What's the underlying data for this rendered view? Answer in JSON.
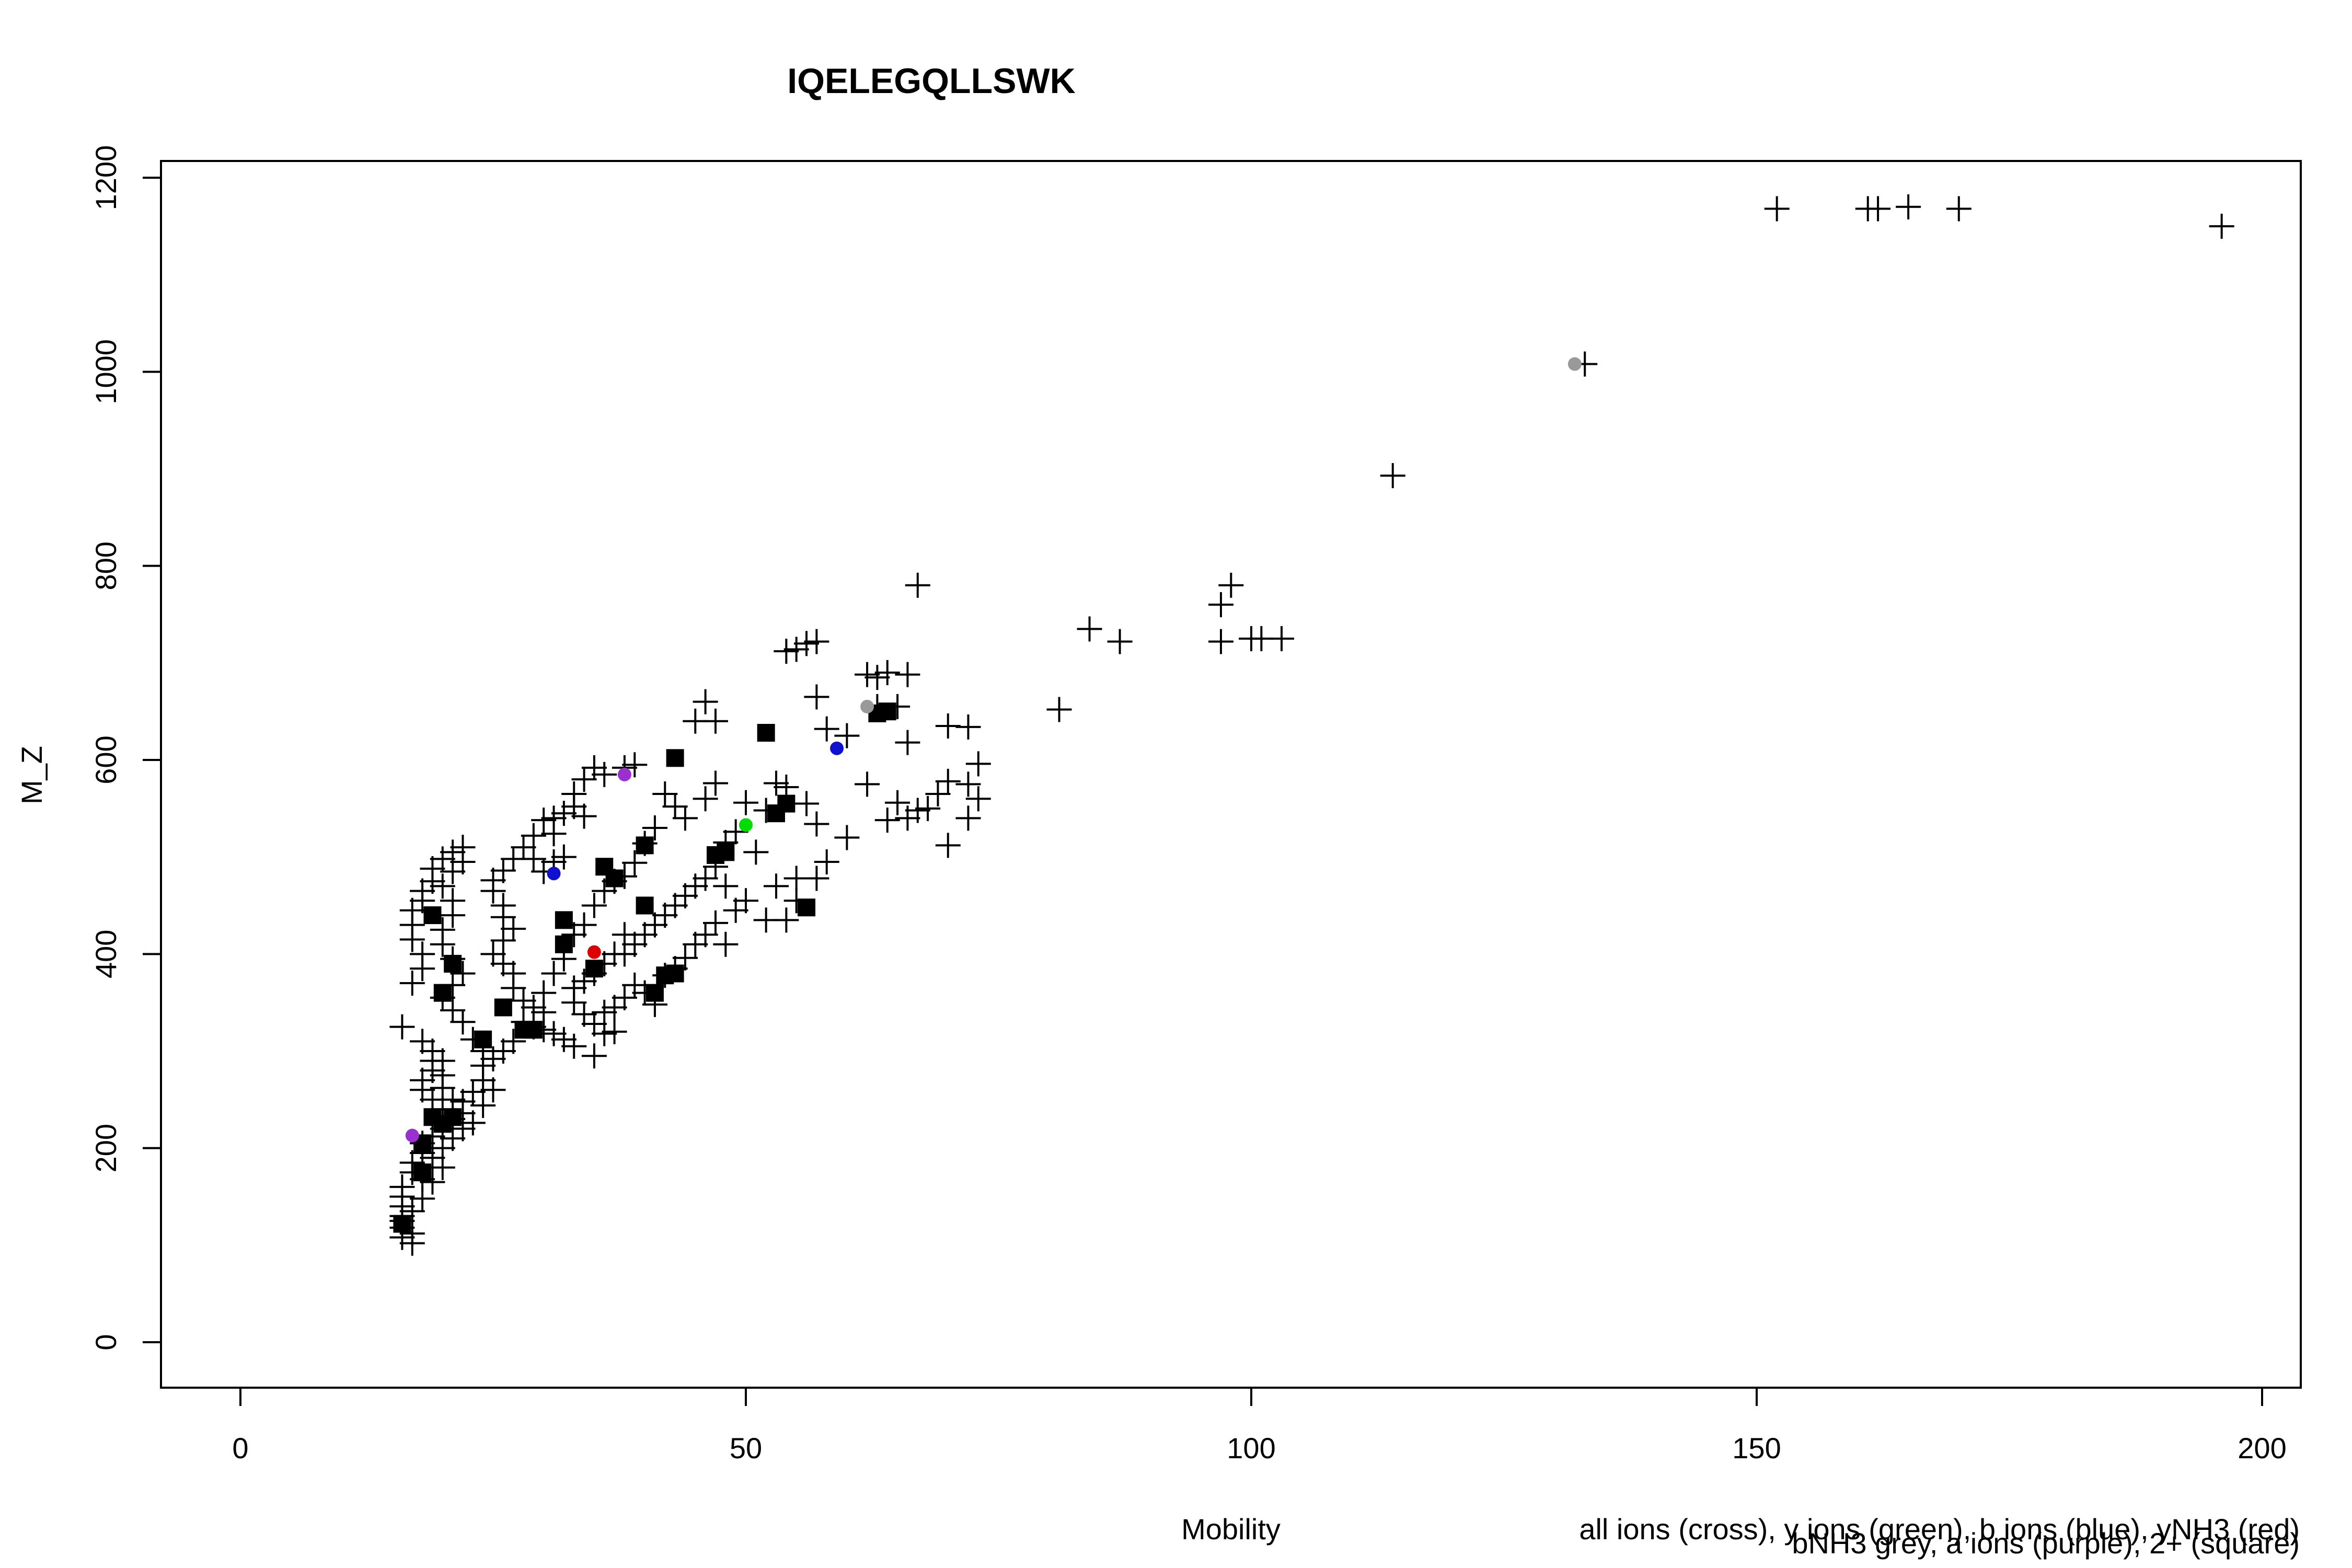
{
  "chart_data": {
    "type": "scatter",
    "title": "IQELEGQLLSWK",
    "xlabel": "Mobility",
    "ylabel": "M_Z",
    "xlim": [
      0,
      200
    ],
    "ylim": [
      0,
      1200
    ],
    "xticks": [
      "0",
      "50",
      "100",
      "150",
      "200"
    ],
    "yticks": [
      "0",
      "200",
      "400",
      "600",
      "800",
      "1000",
      "1200"
    ],
    "legend_notes": [
      "all ions (cross), y ions (green), b ions (blue), yNH3 (red)",
      "bNH3 grey, a ions (purple), 2+ (square)"
    ],
    "grid": false,
    "colors": {
      "cross": "#000000",
      "y_ions": "#00dd00",
      "b_ions": "#1010d0",
      "yNH3": "#dd0000",
      "bNH3": "#999999",
      "a_ions": "#9a30d0",
      "doubly_charged": "#000000"
    },
    "series": [
      {
        "name": "all ions (cross)",
        "marker": "cross",
        "points": [
          [
            152,
            1168
          ],
          [
            161,
            1168
          ],
          [
            162,
            1168
          ],
          [
            165,
            1170
          ],
          [
            170,
            1168
          ],
          [
            196,
            1150
          ],
          [
            133,
            1008
          ],
          [
            114,
            893
          ],
          [
            97,
            760
          ],
          [
            98,
            780
          ],
          [
            97,
            722
          ],
          [
            100,
            725
          ],
          [
            101,
            725
          ],
          [
            103,
            725
          ],
          [
            84,
            735
          ],
          [
            87,
            722
          ],
          [
            67,
            780
          ],
          [
            81,
            652
          ],
          [
            56,
            720
          ],
          [
            57,
            722
          ],
          [
            54,
            712
          ],
          [
            55,
            714
          ],
          [
            62,
            688
          ],
          [
            64,
            690
          ],
          [
            66,
            688
          ],
          [
            63,
            685
          ],
          [
            46,
            660
          ],
          [
            47,
            640
          ],
          [
            45,
            640
          ],
          [
            63,
            655
          ],
          [
            65,
            655
          ],
          [
            66,
            618
          ],
          [
            57,
            665
          ],
          [
            58,
            632
          ],
          [
            60,
            625
          ],
          [
            70,
            635
          ],
          [
            72,
            634
          ],
          [
            73,
            596
          ],
          [
            72,
            575
          ],
          [
            73,
            560
          ],
          [
            72,
            540
          ],
          [
            70,
            578
          ],
          [
            69,
            565
          ],
          [
            68,
            550
          ],
          [
            67,
            548
          ],
          [
            66,
            540
          ],
          [
            65,
            556
          ],
          [
            64,
            538
          ],
          [
            62,
            575
          ],
          [
            70,
            512
          ],
          [
            60,
            520
          ],
          [
            57,
            534
          ],
          [
            57,
            478
          ],
          [
            58,
            495
          ],
          [
            55,
            478
          ],
          [
            52,
            435
          ],
          [
            54,
            435
          ],
          [
            55,
            455
          ],
          [
            53,
            470
          ],
          [
            51,
            505
          ],
          [
            52,
            548
          ],
          [
            54,
            572
          ],
          [
            53,
            576
          ],
          [
            56,
            555
          ],
          [
            50,
            556
          ],
          [
            49,
            526
          ],
          [
            48,
            515
          ],
          [
            47,
            576
          ],
          [
            46,
            560
          ],
          [
            44,
            540
          ],
          [
            43,
            552
          ],
          [
            42,
            565
          ],
          [
            41,
            530
          ],
          [
            40,
            514
          ],
          [
            39,
            494
          ],
          [
            38,
            480
          ],
          [
            36,
            585
          ],
          [
            35,
            592
          ],
          [
            38,
            592
          ],
          [
            39,
            595
          ],
          [
            34,
            580
          ],
          [
            33,
            565
          ],
          [
            33,
            552
          ],
          [
            32,
            545
          ],
          [
            31,
            540
          ],
          [
            30,
            538
          ],
          [
            31,
            524
          ],
          [
            34,
            542
          ],
          [
            32,
            500
          ],
          [
            31,
            495
          ],
          [
            30,
            485
          ],
          [
            29,
            498
          ],
          [
            28,
            510
          ],
          [
            29,
            522
          ],
          [
            27,
            498
          ],
          [
            26,
            486
          ],
          [
            25,
            476
          ],
          [
            25,
            465
          ],
          [
            26,
            450
          ],
          [
            26,
            438
          ],
          [
            27,
            426
          ],
          [
            26,
            414
          ],
          [
            25,
            400
          ],
          [
            26,
            390
          ],
          [
            27,
            380
          ],
          [
            27,
            365
          ],
          [
            28,
            352
          ],
          [
            29,
            345
          ],
          [
            30,
            340
          ],
          [
            30,
            360
          ],
          [
            31,
            380
          ],
          [
            32,
            395
          ],
          [
            33,
            420
          ],
          [
            34,
            430
          ],
          [
            35,
            450
          ],
          [
            36,
            465
          ],
          [
            37,
            475
          ],
          [
            38,
            420
          ],
          [
            37,
            400
          ],
          [
            36,
            390
          ],
          [
            35,
            380
          ],
          [
            34,
            372
          ],
          [
            33,
            365
          ],
          [
            33,
            350
          ],
          [
            34,
            338
          ],
          [
            35,
            328
          ],
          [
            36,
            318
          ],
          [
            37,
            345
          ],
          [
            38,
            355
          ],
          [
            39,
            368
          ],
          [
            40,
            360
          ],
          [
            41,
            348
          ],
          [
            42,
            378
          ],
          [
            43,
            385
          ],
          [
            44,
            396
          ],
          [
            45,
            410
          ],
          [
            46,
            420
          ],
          [
            47,
            432
          ],
          [
            48,
            410
          ],
          [
            49,
            445
          ],
          [
            50,
            455
          ],
          [
            48,
            470
          ],
          [
            47,
            490
          ],
          [
            46,
            478
          ],
          [
            45,
            470
          ],
          [
            44,
            460
          ],
          [
            43,
            450
          ],
          [
            42,
            440
          ],
          [
            41,
            430
          ],
          [
            40,
            420
          ],
          [
            39,
            410
          ],
          [
            38,
            400
          ],
          [
            36,
            340
          ],
          [
            37,
            320
          ],
          [
            35,
            295
          ],
          [
            33,
            305
          ],
          [
            32,
            312
          ],
          [
            31,
            318
          ],
          [
            30,
            322
          ],
          [
            29,
            325
          ],
          [
            28,
            330
          ],
          [
            27,
            310
          ],
          [
            26,
            300
          ],
          [
            25,
            292
          ],
          [
            24,
            285
          ],
          [
            24,
            270
          ],
          [
            23,
            258
          ],
          [
            22,
            248
          ],
          [
            23,
            226
          ],
          [
            24,
            244
          ],
          [
            25,
            260
          ],
          [
            24,
            300
          ],
          [
            23,
            312
          ],
          [
            22,
            330
          ],
          [
            21,
            342
          ],
          [
            20,
            355
          ],
          [
            21,
            368
          ],
          [
            22,
            380
          ],
          [
            21,
            395
          ],
          [
            20,
            410
          ],
          [
            20,
            425
          ],
          [
            21,
            440
          ],
          [
            21,
            455
          ],
          [
            20,
            470
          ],
          [
            21,
            485
          ],
          [
            22,
            495
          ],
          [
            21,
            505
          ],
          [
            22,
            510
          ],
          [
            20,
            498
          ],
          [
            19,
            488
          ],
          [
            19,
            475
          ],
          [
            18,
            465
          ],
          [
            18,
            455
          ],
          [
            17,
            445
          ],
          [
            17,
            430
          ],
          [
            17,
            415
          ],
          [
            18,
            400
          ],
          [
            18,
            385
          ],
          [
            17,
            370
          ],
          [
            16,
            325
          ],
          [
            19,
            300
          ],
          [
            20,
            290
          ],
          [
            19,
            280
          ],
          [
            18,
            270
          ],
          [
            18,
            260
          ],
          [
            19,
            250
          ],
          [
            20,
            240
          ],
          [
            21,
            230
          ],
          [
            20,
            220
          ],
          [
            19,
            212
          ],
          [
            18,
            205
          ],
          [
            18,
            195
          ],
          [
            17,
            185
          ],
          [
            17,
            175
          ],
          [
            18,
            168
          ],
          [
            16,
            160
          ],
          [
            16,
            150
          ],
          [
            16,
            140
          ],
          [
            16,
            130
          ],
          [
            16,
            118
          ],
          [
            16,
            108
          ],
          [
            17,
            102
          ],
          [
            17,
            112
          ],
          [
            16,
            125
          ],
          [
            17,
            135
          ],
          [
            18,
            148
          ],
          [
            19,
            165
          ],
          [
            20,
            180
          ],
          [
            19,
            190
          ],
          [
            20,
            200
          ],
          [
            21,
            210
          ],
          [
            22,
            220
          ],
          [
            22,
            236
          ],
          [
            21,
            250
          ],
          [
            20,
            262
          ],
          [
            20,
            275
          ],
          [
            19,
            290
          ],
          [
            18,
            310
          ]
        ]
      },
      {
        "name": "2+ (square)",
        "marker": "square",
        "points": [
          [
            16,
            122
          ],
          [
            18,
            205
          ],
          [
            19,
            232
          ],
          [
            20,
            225
          ],
          [
            21,
            232
          ],
          [
            18,
            175
          ],
          [
            19,
            440
          ],
          [
            21,
            390
          ],
          [
            20,
            360
          ],
          [
            24,
            312
          ],
          [
            26,
            345
          ],
          [
            28,
            322
          ],
          [
            29,
            322
          ],
          [
            32,
            435
          ],
          [
            32,
            410
          ],
          [
            36,
            490
          ],
          [
            37,
            478
          ],
          [
            35,
            385
          ],
          [
            40,
            512
          ],
          [
            40,
            450
          ],
          [
            41,
            360
          ],
          [
            42,
            378
          ],
          [
            43,
            380
          ],
          [
            43,
            602
          ],
          [
            47,
            502
          ],
          [
            48,
            505
          ],
          [
            52,
            628
          ],
          [
            53,
            545
          ],
          [
            54,
            555
          ],
          [
            56,
            448
          ],
          [
            63,
            648
          ],
          [
            64,
            650
          ]
        ]
      },
      {
        "name": "y ions (green)",
        "marker": "dot",
        "points": [
          [
            50,
            533
          ]
        ]
      },
      {
        "name": "b ions (blue)",
        "marker": "dot",
        "points": [
          [
            31,
            483
          ],
          [
            59,
            612
          ]
        ]
      },
      {
        "name": "yNH3 (red)",
        "marker": "dot",
        "points": [
          [
            35,
            402
          ]
        ]
      },
      {
        "name": "bNH3 grey",
        "marker": "dot",
        "points": [
          [
            132,
            1008
          ],
          [
            62,
            655
          ]
        ]
      },
      {
        "name": "a ions (purple)",
        "marker": "dot",
        "points": [
          [
            17,
            213
          ],
          [
            38,
            585
          ]
        ]
      }
    ]
  }
}
